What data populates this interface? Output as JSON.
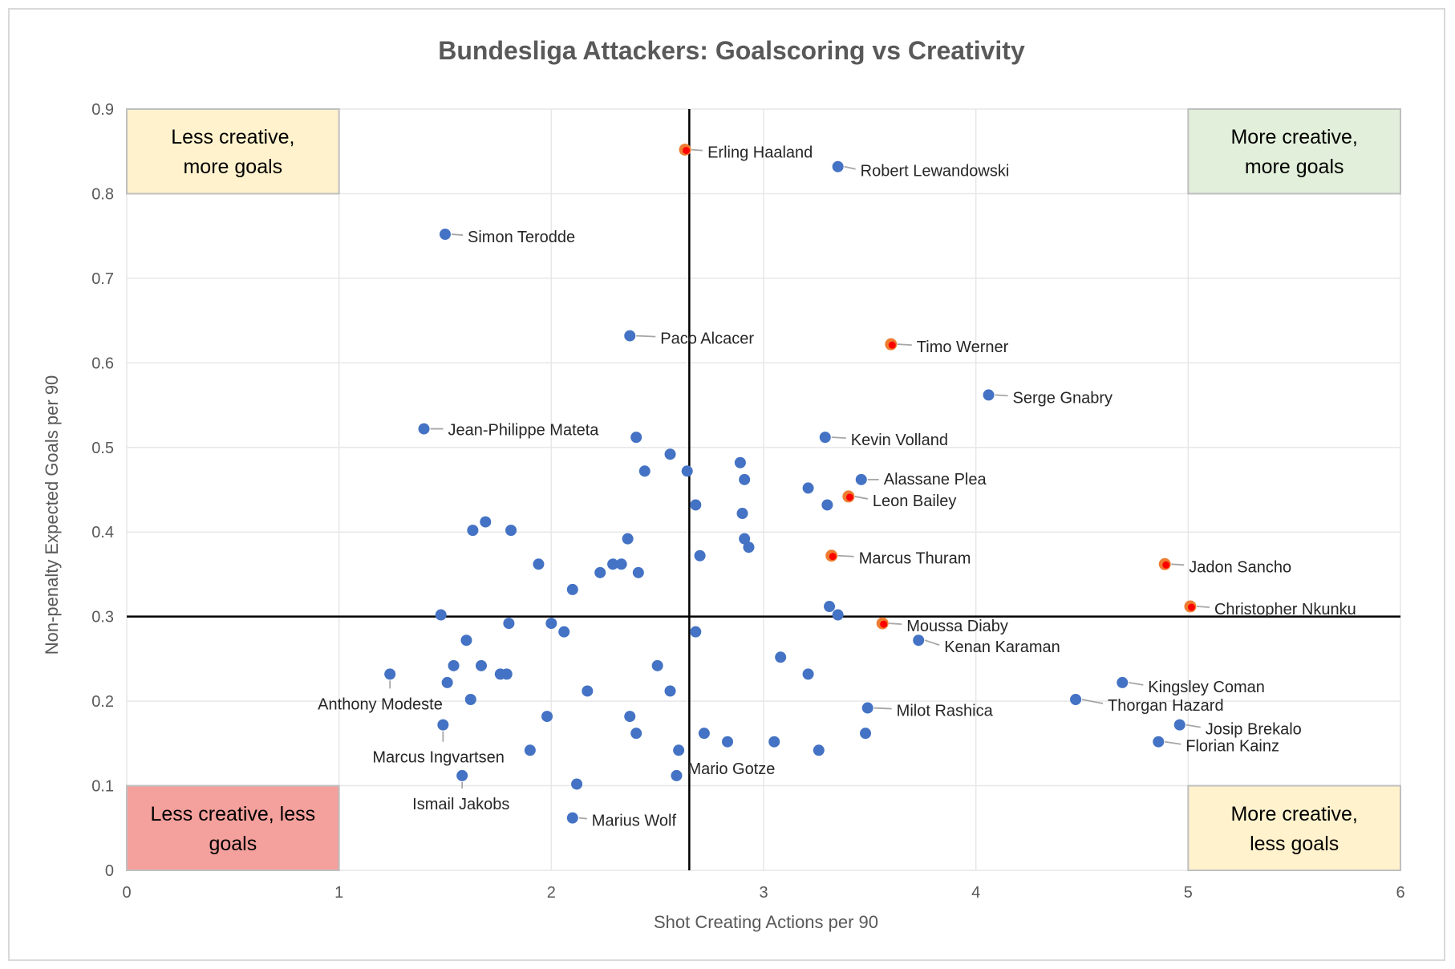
{
  "chart_data": {
    "type": "scatter",
    "title": "Bundesliga Attackers: Goalscoring vs Creativity",
    "xlabel": "Shot Creating Actions per 90",
    "ylabel": "Non-penalty Expected Goals per 90",
    "xlim": [
      0,
      6
    ],
    "ylim": [
      0,
      0.9
    ],
    "xticks": [
      "0",
      "1",
      "2",
      "3",
      "4",
      "5",
      "6"
    ],
    "yticks": [
      "0",
      "0.1",
      "0.2",
      "0.3",
      "0.4",
      "0.5",
      "0.6",
      "0.7",
      "0.8",
      "0.9"
    ],
    "grid": true,
    "reference_lines": {
      "x": 2.65,
      "y": 0.3
    },
    "colors": {
      "point": "#4472c4",
      "highlight_fill": "#ff0000",
      "highlight_ring": "#ed7d31",
      "leader": "#a6a6a6",
      "axis_line": "#000000"
    },
    "quadrant_labels": [
      {
        "text_lines": [
          "Less creative,",
          "more goals"
        ],
        "fill": "#fff2cc"
      },
      {
        "text_lines": [
          "More creative,",
          "more goals"
        ],
        "fill": "#e2efda"
      },
      {
        "text_lines": [
          "Less creative, less",
          "goals"
        ],
        "fill": "#f4a09c"
      },
      {
        "text_lines": [
          "More creative,",
          "less goals"
        ],
        "fill": "#fff2cc"
      }
    ],
    "labeled_points": [
      {
        "name": "Erling Haaland",
        "x": 2.63,
        "y": 0.852,
        "highlight": true
      },
      {
        "name": "Robert Lewandowski",
        "x": 3.35,
        "y": 0.832,
        "highlight": false
      },
      {
        "name": "Simon Terodde",
        "x": 1.5,
        "y": 0.752,
        "highlight": false
      },
      {
        "name": "Paco Alcacer",
        "x": 2.37,
        "y": 0.632,
        "highlight": false
      },
      {
        "name": "Timo Werner",
        "x": 3.6,
        "y": 0.622,
        "highlight": true
      },
      {
        "name": "Serge Gnabry",
        "x": 4.06,
        "y": 0.562,
        "highlight": false
      },
      {
        "name": "Jean-Philippe Mateta",
        "x": 1.4,
        "y": 0.522,
        "highlight": false
      },
      {
        "name": "Kevin Volland",
        "x": 3.29,
        "y": 0.512,
        "highlight": false
      },
      {
        "name": "Alassane Plea",
        "x": 3.46,
        "y": 0.462,
        "highlight": false
      },
      {
        "name": "Leon Bailey",
        "x": 3.4,
        "y": 0.442,
        "highlight": true
      },
      {
        "name": "Marcus Thuram",
        "x": 3.32,
        "y": 0.372,
        "highlight": true
      },
      {
        "name": "Jadon Sancho",
        "x": 4.89,
        "y": 0.362,
        "highlight": true
      },
      {
        "name": "Christopher Nkunku",
        "x": 5.01,
        "y": 0.312,
        "highlight": true
      },
      {
        "name": "Moussa Diaby",
        "x": 3.56,
        "y": 0.292,
        "highlight": true
      },
      {
        "name": "Kenan Karaman",
        "x": 3.73,
        "y": 0.272,
        "highlight": false
      },
      {
        "name": "Kingsley Coman",
        "x": 4.69,
        "y": 0.222,
        "highlight": false
      },
      {
        "name": "Anthony Modeste",
        "x": 1.24,
        "y": 0.232,
        "highlight": false
      },
      {
        "name": "Thorgan Hazard",
        "x": 4.47,
        "y": 0.202,
        "highlight": false
      },
      {
        "name": "Milot Rashica",
        "x": 3.49,
        "y": 0.192,
        "highlight": false
      },
      {
        "name": "Josip Brekalo",
        "x": 4.96,
        "y": 0.172,
        "highlight": false
      },
      {
        "name": "Marcus Ingvartsen",
        "x": 1.49,
        "y": 0.172,
        "highlight": false
      },
      {
        "name": "Florian Kainz",
        "x": 4.86,
        "y": 0.152,
        "highlight": false
      },
      {
        "name": "Mario Gotze",
        "x": 2.59,
        "y": 0.112,
        "highlight": false
      },
      {
        "name": "Ismail Jakobs",
        "x": 1.58,
        "y": 0.112,
        "highlight": false
      },
      {
        "name": "Marius Wolf",
        "x": 2.1,
        "y": 0.062,
        "highlight": false
      }
    ],
    "other_points": [
      {
        "x": 2.4,
        "y": 0.512
      },
      {
        "x": 2.56,
        "y": 0.492
      },
      {
        "x": 2.44,
        "y": 0.472
      },
      {
        "x": 2.64,
        "y": 0.472
      },
      {
        "x": 2.89,
        "y": 0.482
      },
      {
        "x": 2.91,
        "y": 0.462
      },
      {
        "x": 3.21,
        "y": 0.452
      },
      {
        "x": 2.68,
        "y": 0.432
      },
      {
        "x": 3.3,
        "y": 0.432
      },
      {
        "x": 2.9,
        "y": 0.422
      },
      {
        "x": 1.69,
        "y": 0.412
      },
      {
        "x": 1.63,
        "y": 0.402
      },
      {
        "x": 1.81,
        "y": 0.402
      },
      {
        "x": 2.36,
        "y": 0.392
      },
      {
        "x": 2.91,
        "y": 0.392
      },
      {
        "x": 2.93,
        "y": 0.382
      },
      {
        "x": 2.7,
        "y": 0.372
      },
      {
        "x": 1.94,
        "y": 0.362
      },
      {
        "x": 2.29,
        "y": 0.362
      },
      {
        "x": 2.33,
        "y": 0.362
      },
      {
        "x": 2.23,
        "y": 0.352
      },
      {
        "x": 2.41,
        "y": 0.352
      },
      {
        "x": 2.1,
        "y": 0.332
      },
      {
        "x": 3.31,
        "y": 0.312
      },
      {
        "x": 1.48,
        "y": 0.302
      },
      {
        "x": 3.35,
        "y": 0.302
      },
      {
        "x": 1.8,
        "y": 0.292
      },
      {
        "x": 2.0,
        "y": 0.292
      },
      {
        "x": 2.06,
        "y": 0.282
      },
      {
        "x": 2.68,
        "y": 0.282
      },
      {
        "x": 1.6,
        "y": 0.272
      },
      {
        "x": 3.08,
        "y": 0.252
      },
      {
        "x": 1.54,
        "y": 0.242
      },
      {
        "x": 1.67,
        "y": 0.242
      },
      {
        "x": 2.5,
        "y": 0.242
      },
      {
        "x": 1.76,
        "y": 0.232
      },
      {
        "x": 1.79,
        "y": 0.232
      },
      {
        "x": 3.21,
        "y": 0.232
      },
      {
        "x": 1.51,
        "y": 0.222
      },
      {
        "x": 2.17,
        "y": 0.212
      },
      {
        "x": 2.56,
        "y": 0.212
      },
      {
        "x": 1.62,
        "y": 0.202
      },
      {
        "x": 1.98,
        "y": 0.182
      },
      {
        "x": 2.37,
        "y": 0.182
      },
      {
        "x": 2.4,
        "y": 0.162
      },
      {
        "x": 2.72,
        "y": 0.162
      },
      {
        "x": 3.48,
        "y": 0.162
      },
      {
        "x": 2.83,
        "y": 0.152
      },
      {
        "x": 3.05,
        "y": 0.152
      },
      {
        "x": 1.9,
        "y": 0.142
      },
      {
        "x": 2.6,
        "y": 0.142
      },
      {
        "x": 3.26,
        "y": 0.142
      },
      {
        "x": 2.12,
        "y": 0.102
      }
    ]
  }
}
